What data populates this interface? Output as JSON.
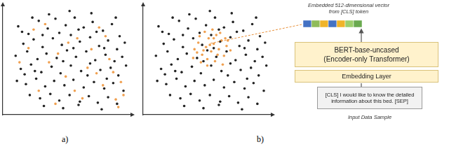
{
  "chart_data": [
    {
      "type": "scatter",
      "title": "a)",
      "xlim": [
        0,
        10
      ],
      "ylim": [
        0,
        10
      ],
      "grid": false,
      "tick_labels": false,
      "series": [
        {
          "color": "#222222",
          "marker": "circle",
          "x": [
            1.2,
            2.0,
            2.8,
            3.5,
            4.1,
            4.9,
            5.6,
            6.3,
            7.0,
            7.8,
            8.5,
            9.1,
            1.6,
            2.4,
            3.1,
            3.9,
            4.6,
            5.3,
            6.0,
            6.8,
            7.5,
            8.2,
            8.9,
            9.5,
            1.0,
            1.9,
            2.7,
            3.4,
            4.2,
            5.0,
            5.7,
            6.5,
            7.2,
            8.0,
            8.7,
            9.3,
            1.4,
            2.2,
            3.0,
            3.8,
            4.5,
            5.3,
            6.1,
            6.8,
            7.6,
            8.4,
            9.0,
            1.1,
            1.8,
            2.6,
            3.3,
            4.0,
            4.8,
            5.5,
            6.3,
            7.1,
            7.9,
            8.6,
            9.4,
            2.1,
            2.9,
            3.7,
            4.4,
            5.2,
            6.0,
            6.7,
            7.4,
            8.2,
            8.9,
            3.2,
            4.7,
            5.9,
            7.7,
            1.5,
            3.6,
            5.2,
            6.9,
            2.3,
            4.4,
            5.9,
            7.3,
            8.8,
            2.5,
            4.7,
            6.6,
            8.1,
            3.1,
            5.5,
            7.9,
            1.7,
            9.6
          ],
          "values": [
            8.1,
            7.4,
            8.6,
            7.9,
            8.8,
            8.2,
            8.9,
            8.0,
            8.5,
            7.7,
            8.3,
            7.2,
            6.5,
            6.9,
            6.2,
            7.0,
            6.4,
            7.3,
            6.7,
            7.1,
            6.3,
            6.8,
            6.0,
            6.6,
            5.4,
            5.8,
            5.1,
            5.6,
            5.2,
            5.9,
            5.3,
            5.8,
            5.0,
            5.5,
            4.9,
            5.3,
            4.2,
            4.6,
            3.9,
            4.4,
            3.8,
            4.5,
            4.0,
            4.7,
            4.1,
            4.3,
            3.6,
            3.1,
            2.8,
            3.3,
            2.6,
            3.1,
            2.7,
            3.2,
            2.5,
            3.0,
            2.4,
            2.9,
            2.2,
            1.8,
            1.5,
            1.9,
            1.3,
            1.8,
            1.2,
            1.7,
            1.1,
            1.6,
            1.0,
            0.8,
            0.6,
            0.9,
            0.5,
            7.6,
            9.2,
            9.5,
            9.3,
            8.9,
            7.5,
            7.8,
            7.6,
            8.9,
            4.0,
            4.9,
            3.6,
            3.3,
            7.3,
            6.1,
            6.1,
            3.7,
            4.5
          ]
        },
        {
          "color": "#f0a050",
          "marker": "circle",
          "x": [
            2.0,
            3.3,
            4.3,
            5.8,
            6.6,
            7.5,
            8.3,
            2.8,
            4.9,
            6.2,
            7.8,
            8.8,
            9.2,
            3.6,
            5.1,
            1.3,
            6.9,
            8.0,
            9.4,
            5.6,
            4.1,
            7.3,
            2.4,
            8.6,
            9.0
          ],
          "values": [
            6.1,
            8.3,
            5.6,
            7.0,
            4.3,
            8.0,
            5.1,
            2.2,
            3.5,
            1.5,
            2.7,
            1.4,
            3.0,
            4.8,
            6.6,
            4.8,
            6.0,
            7.2,
            1.8,
            2.2,
            1.0,
            3.8,
            7.8,
            3.9,
            0.7
          ]
        }
      ]
    },
    {
      "type": "scatter",
      "title": "b)",
      "xlim": [
        0,
        10
      ],
      "ylim": [
        0,
        10
      ],
      "grid": false,
      "tick_labels": false,
      "series": [
        {
          "color": "#222222",
          "marker": "circle",
          "x": [
            1.2,
            2.0,
            2.8,
            3.5,
            4.1,
            4.9,
            5.6,
            6.3,
            7.0,
            7.8,
            8.5,
            9.1,
            1.6,
            2.4,
            3.1,
            3.9,
            4.6,
            5.3,
            6.0,
            6.8,
            7.5,
            8.2,
            8.9,
            9.5,
            1.0,
            1.9,
            2.7,
            3.4,
            4.2,
            5.0,
            5.7,
            6.5,
            7.2,
            8.0,
            8.7,
            9.3,
            1.4,
            2.2,
            3.0,
            3.8,
            4.5,
            5.3,
            6.1,
            6.8,
            7.6,
            8.4,
            9.0,
            1.1,
            1.8,
            2.6,
            3.3,
            4.0,
            4.8,
            5.5,
            6.3,
            7.1,
            7.9,
            8.6,
            9.4,
            2.1,
            2.9,
            3.7,
            4.4,
            5.2,
            6.0,
            6.7,
            7.4,
            8.2,
            8.9,
            3.2,
            4.7,
            5.9,
            7.7,
            1.5,
            3.6,
            5.2,
            6.9,
            2.3,
            4.4,
            5.9,
            7.3,
            8.8,
            2.5,
            4.7,
            6.6,
            8.1,
            3.1,
            5.5,
            7.9,
            1.7,
            9.6
          ],
          "values": [
            8.1,
            7.4,
            8.6,
            7.9,
            8.8,
            8.2,
            8.9,
            8.0,
            8.5,
            7.7,
            8.3,
            7.2,
            6.5,
            6.9,
            6.2,
            7.0,
            6.4,
            7.3,
            6.7,
            7.1,
            6.3,
            6.8,
            6.0,
            6.6,
            5.4,
            5.8,
            5.1,
            5.6,
            5.2,
            5.9,
            5.3,
            5.8,
            5.0,
            5.5,
            4.9,
            5.3,
            4.2,
            4.6,
            3.9,
            4.4,
            3.8,
            4.5,
            4.0,
            4.7,
            4.1,
            4.3,
            3.6,
            3.1,
            2.8,
            3.3,
            2.6,
            3.1,
            2.7,
            3.2,
            2.5,
            3.0,
            2.4,
            2.9,
            2.2,
            1.8,
            1.5,
            1.9,
            1.3,
            1.8,
            1.2,
            1.7,
            1.1,
            1.6,
            1.0,
            0.8,
            0.6,
            0.9,
            0.5,
            7.6,
            9.2,
            9.5,
            9.3,
            8.9,
            7.5,
            7.8,
            7.6,
            8.9,
            4.0,
            4.9,
            3.6,
            3.3,
            7.3,
            6.1,
            6.1,
            3.7,
            4.5
          ]
        },
        {
          "color": "#f0a050",
          "marker": "circle",
          "x": [
            4.0,
            4.3,
            4.6,
            4.9,
            5.1,
            5.3,
            5.5,
            5.7,
            5.9,
            6.1,
            6.3,
            6.5,
            4.4,
            4.8,
            5.4,
            6.0,
            6.4,
            3.9,
            4.5,
            5.0,
            5.6,
            6.2,
            5.2,
            4.7,
            5.8,
            6.8,
            4.2,
            5.5,
            5.0,
            6.6
          ],
          "values": [
            6.0,
            6.6,
            5.5,
            6.2,
            7.0,
            5.8,
            6.5,
            7.3,
            6.0,
            6.8,
            5.4,
            6.3,
            7.2,
            7.6,
            7.8,
            7.5,
            7.0,
            5.2,
            4.8,
            5.1,
            4.9,
            4.6,
            6.4,
            5.9,
            5.5,
            5.9,
            5.7,
            7.0,
            4.5,
            6.8
          ]
        }
      ]
    }
  ],
  "diagram": {
    "vector_caption": "Embedded 512-dimensional vector from [CLS] token",
    "encoder": {
      "title": "BERT-base-uncased",
      "subtitle": "(Encoder-only Transformer)"
    },
    "embedding_layer": "Embedding Layer",
    "input": {
      "text": "[CLS] I would like to know the detailed information about this bed. [SEP]",
      "caption": "Input Data Sample"
    }
  }
}
